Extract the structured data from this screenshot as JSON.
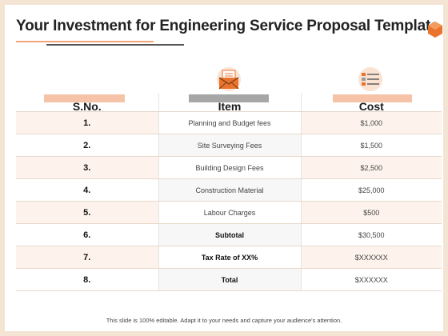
{
  "slide": {
    "title": "Your Investment for Engineering Service Proposal Template",
    "footer": "This slide is 100% editable. Adapt it to your needs and capture your audience's attention."
  },
  "icons": {
    "item": "envelope-letter-icon",
    "cost": "checklist-icon",
    "corner": "hexagon-icon"
  },
  "colors": {
    "accent": "#f2a47c",
    "accent_light": "#f6c3a8",
    "row_tint": "#fdf3ec"
  },
  "table": {
    "headers": {
      "sno": "S.No.",
      "item": "Item",
      "cost": "Cost"
    },
    "rows": [
      {
        "sno": "1.",
        "item": "Planning and Budget fees",
        "cost": "$1,000",
        "bold": false
      },
      {
        "sno": "2.",
        "item": "Site Surveying Fees",
        "cost": "$1,500",
        "bold": false
      },
      {
        "sno": "3.",
        "item": "Building Design Fees",
        "cost": "$2,500",
        "bold": false
      },
      {
        "sno": "4.",
        "item": "Construction Material",
        "cost": "$25,000",
        "bold": false
      },
      {
        "sno": "5.",
        "item": "Labour Charges",
        "cost": "$500",
        "bold": false
      },
      {
        "sno": "6.",
        "item": "Subtotal",
        "cost": "$30,500",
        "bold": true
      },
      {
        "sno": "7.",
        "item": "Tax Rate of XX%",
        "cost": "$XXXXXX",
        "bold": true
      },
      {
        "sno": "8.",
        "item": "Total",
        "cost": "$XXXXXX",
        "bold": true
      }
    ]
  }
}
